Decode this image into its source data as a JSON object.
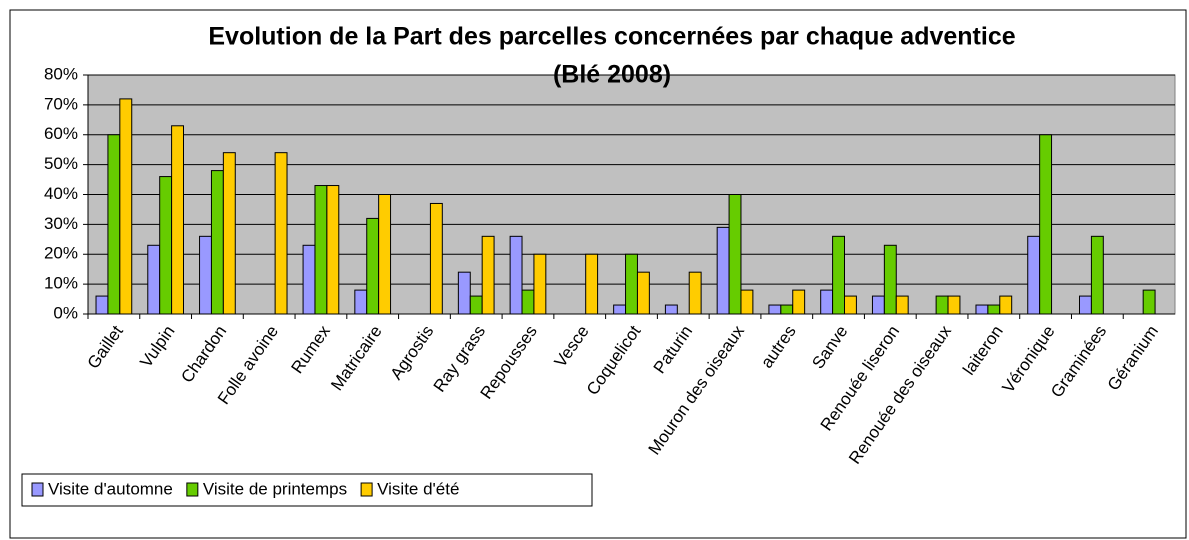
{
  "chart_data": {
    "type": "bar",
    "title": "Evolution de la Part des parcelles concernées par chaque adventice",
    "subtitle": "(Blé 2008)",
    "categories": [
      "Gaillet",
      "Vulpin",
      "Chardon",
      "Folle avoine",
      "Rumex",
      "Matricaire",
      "Agrostis",
      "Ray grass",
      "Repousses",
      "Vesce",
      "Coquelicot",
      "Paturin",
      "Mouron des oiseaux",
      "autres",
      "Sanve",
      "Renouée liseron",
      "Renouée des oiseaux",
      "laiteron",
      "Véronique",
      "Graminées",
      "Géranium"
    ],
    "series": [
      {
        "name": "Visite d'automne",
        "color": "#9999ff",
        "values": [
          6,
          23,
          26,
          0,
          23,
          8,
          0,
          14,
          26,
          0,
          3,
          3,
          29,
          3,
          8,
          6,
          0,
          3,
          26,
          6,
          0
        ]
      },
      {
        "name": "Visite de printemps",
        "color": "#66cc00",
        "values": [
          60,
          46,
          48,
          0,
          43,
          32,
          0,
          6,
          8,
          0,
          20,
          0,
          40,
          3,
          26,
          23,
          6,
          3,
          60,
          26,
          8
        ]
      },
      {
        "name": "Visite d'été",
        "color": "#ffcc00",
        "values": [
          72,
          63,
          54,
          54,
          43,
          40,
          37,
          26,
          20,
          20,
          14,
          14,
          8,
          8,
          6,
          6,
          6,
          6,
          0,
          0,
          0
        ]
      }
    ],
    "ylim": [
      0,
      80
    ],
    "yticks": [
      {
        "value": 0,
        "label": "0%"
      },
      {
        "value": 10,
        "label": "10%"
      },
      {
        "value": 20,
        "label": "20%"
      },
      {
        "value": 30,
        "label": "30%"
      },
      {
        "value": 40,
        "label": "40%"
      },
      {
        "value": 50,
        "label": "50%"
      },
      {
        "value": 60,
        "label": "60%"
      },
      {
        "value": 70,
        "label": "70%"
      },
      {
        "value": 80,
        "label": "80%"
      }
    ],
    "grid": true,
    "legend": "bottom-left"
  }
}
